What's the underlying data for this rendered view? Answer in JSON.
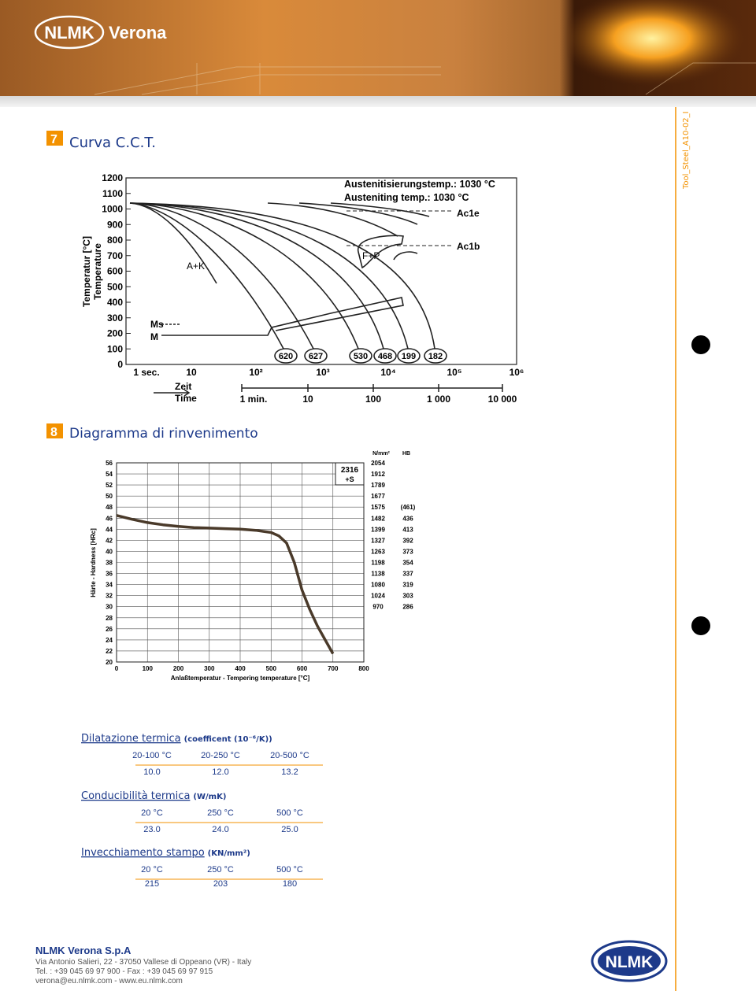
{
  "header": {
    "brand": "NLMK",
    "site": "Verona",
    "doc_code": "Tool_Steel_A10-02_I"
  },
  "sections": [
    {
      "number": "7",
      "title": "Curva C.C.T."
    },
    {
      "number": "8",
      "title": "Diagramma di rinvenimento"
    }
  ],
  "cct": {
    "yticks": [
      0,
      100,
      200,
      300,
      400,
      500,
      600,
      700,
      800,
      900,
      1000,
      1100,
      1200
    ],
    "ylim": [
      0,
      1200
    ],
    "ylabel_de": "Temperatur [°C]",
    "ylabel_en": "Temperature",
    "xticks": [
      "1 sec.",
      "10",
      "10²",
      "10³",
      "10⁴",
      "10⁵",
      "10⁶"
    ],
    "time_de": "Zeit",
    "time_en": "Time",
    "min_ticks": [
      "1 min.",
      "10",
      "100",
      "1 000",
      "10 000"
    ],
    "austenitizing_de": "Austenitisierungstemp.: 1030 °C",
    "austenitizing_en": "Austeniting temp.: 1030 °C",
    "ac1e": "Ac1e",
    "ac1b": "Ac1b",
    "region_ak": "A+K",
    "region_fp": "F+P",
    "ms": "Ms",
    "m": "M",
    "hardness": [
      620,
      627,
      530,
      468,
      199,
      182
    ]
  },
  "tempering": {
    "ylabel": "Härte - Hardness [HRc]",
    "xlabel": "Anlaßtemperatur - Tempering temperature [°C]",
    "xlim": [
      0,
      800
    ],
    "ylim": [
      20,
      56
    ],
    "xticks": [
      0,
      100,
      200,
      300,
      400,
      500,
      600,
      700,
      800
    ],
    "yticks": [
      20,
      22,
      24,
      26,
      28,
      30,
      32,
      34,
      36,
      38,
      40,
      42,
      44,
      46,
      48,
      50,
      52,
      54,
      56
    ],
    "grade": "2316",
    "condition": "+S",
    "strength_unit": "N/mm²",
    "hb_unit": "HB",
    "strength": [
      2054,
      1912,
      1789,
      1677,
      1575,
      1482,
      1399,
      1327,
      1263,
      1198,
      1138,
      1080,
      1024,
      970
    ],
    "hb": [
      {
        "value": 461,
        "label": "(461)"
      },
      436,
      413,
      392,
      373,
      354,
      337,
      319,
      303,
      286
    ],
    "curve": {
      "x": [
        0,
        50,
        100,
        150,
        200,
        250,
        300,
        350,
        400,
        450,
        500,
        525,
        550,
        575,
        600,
        625,
        650,
        675,
        700
      ],
      "y": [
        46.5,
        45.8,
        45.2,
        44.8,
        44.5,
        44.3,
        44.2,
        44.1,
        44,
        43.8,
        43.4,
        42.8,
        41.5,
        38,
        33,
        29.5,
        26.5,
        24,
        21.5
      ]
    }
  },
  "properties": [
    {
      "name": "Dilatazione termica",
      "unit": "(coefficent (10⁻⁶/K))",
      "headers": [
        "20-100 °C",
        "20-250 °C",
        "20-500 °C"
      ],
      "values": [
        "10.0",
        "12.0",
        "13.2"
      ]
    },
    {
      "name": "Conducibilità termica",
      "unit": "(W/mK)",
      "headers": [
        "20 °C",
        "250 °C",
        "500 °C"
      ],
      "values": [
        "23.0",
        "24.0",
        "25.0"
      ]
    },
    {
      "name": "Invecchiamento stampo",
      "unit": "(KN/mm²)",
      "headers": [
        "20 °C",
        "250 °C",
        "500 °C"
      ],
      "values": [
        "215",
        "203",
        "180"
      ]
    }
  ],
  "footer": {
    "company": "NLMK Verona S.p.A",
    "address": "Via Antonio Salieri, 22 - 37050 Vallese  di Oppeano (VR) - Italy",
    "phone": "Tel. : +39 045 69 97 900 - Fax : +39 045 69 97 915",
    "web": "verona@eu.nlmk.com - www.eu.nlmk.com",
    "logo": "NLMK"
  }
}
